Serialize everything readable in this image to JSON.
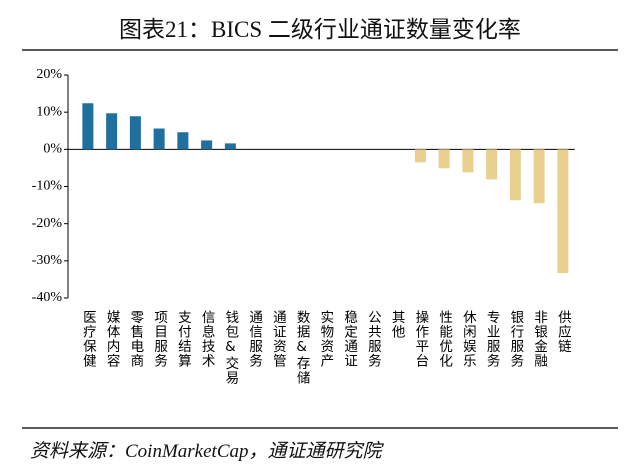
{
  "chart_data": {
    "type": "bar",
    "title": "图表21：BICS 二级行业通证数量变化率",
    "source": "资料来源：CoinMarketCap，通证通研究院",
    "categories": [
      "医疗保健",
      "媒体内容",
      "零售电商",
      "项目服务",
      "支付结算",
      "信息技术",
      "钱包&交易",
      "通信服务",
      "通证资管",
      "数据&存储",
      "实物资产",
      "稳定通证",
      "公共服务",
      "其他",
      "操作平台",
      "性能优化",
      "休闲娱乐",
      "专业服务",
      "银行服务",
      "非银金融",
      "供应链"
    ],
    "values": [
      12.4,
      9.7,
      8.9,
      5.6,
      4.6,
      2.4,
      1.6,
      0,
      0,
      0,
      0,
      0,
      0,
      0,
      -3.5,
      -5.1,
      -6.2,
      -8.1,
      -13.7,
      -14.5,
      -33.3
    ],
    "positive_color": "#1f6f9f",
    "negative_color": "#ead08f",
    "ylim": [
      -40,
      20
    ],
    "yticks": [
      {
        "value": -40,
        "label": "-40%"
      },
      {
        "value": -30,
        "label": "-30%"
      },
      {
        "value": -20,
        "label": "-20%"
      },
      {
        "value": -10,
        "label": "-10%"
      },
      {
        "value": 0,
        "label": "0%"
      },
      {
        "value": 10,
        "label": "10%"
      },
      {
        "value": 20,
        "label": "20%"
      }
    ],
    "grid": false
  }
}
